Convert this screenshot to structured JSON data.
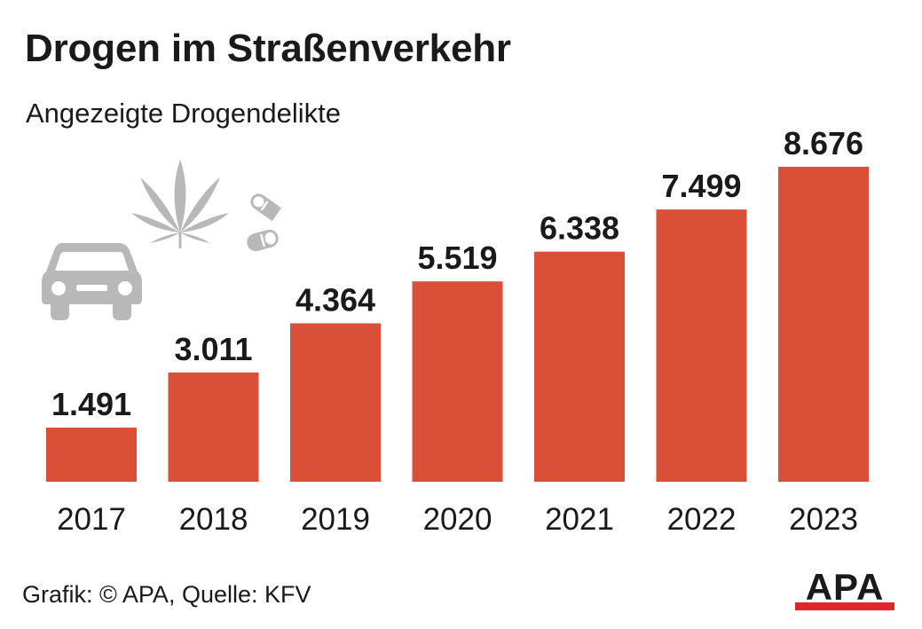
{
  "header": {
    "title": "Drogen im Straßenverkehr",
    "subtitle": "Angezeigte Drogendelikte"
  },
  "footer": {
    "source": "Grafik: © APA, Quelle: KFV",
    "logo_text": "APA"
  },
  "icons": [
    "car-icon",
    "cannabis-leaf-icon",
    "pills-icon"
  ],
  "colors": {
    "bar": "#d94f38",
    "icon": "#b8b8b8",
    "logo_red": "#e0262b",
    "text": "#1a1a1a"
  },
  "chart_data": {
    "type": "bar",
    "title": "Drogen im Straßenverkehr",
    "subtitle": "Angezeigte Drogendelikte",
    "categories": [
      "2017",
      "2018",
      "2019",
      "2020",
      "2021",
      "2022",
      "2023"
    ],
    "values": [
      1491,
      3011,
      4364,
      5519,
      6338,
      7499,
      8676
    ],
    "value_labels": [
      "1.491",
      "3.011",
      "4.364",
      "5.519",
      "6.338",
      "7.499",
      "8.676"
    ],
    "xlabel": "",
    "ylabel": "",
    "ylim": [
      0,
      8676
    ],
    "grid": false,
    "legend": "none"
  }
}
